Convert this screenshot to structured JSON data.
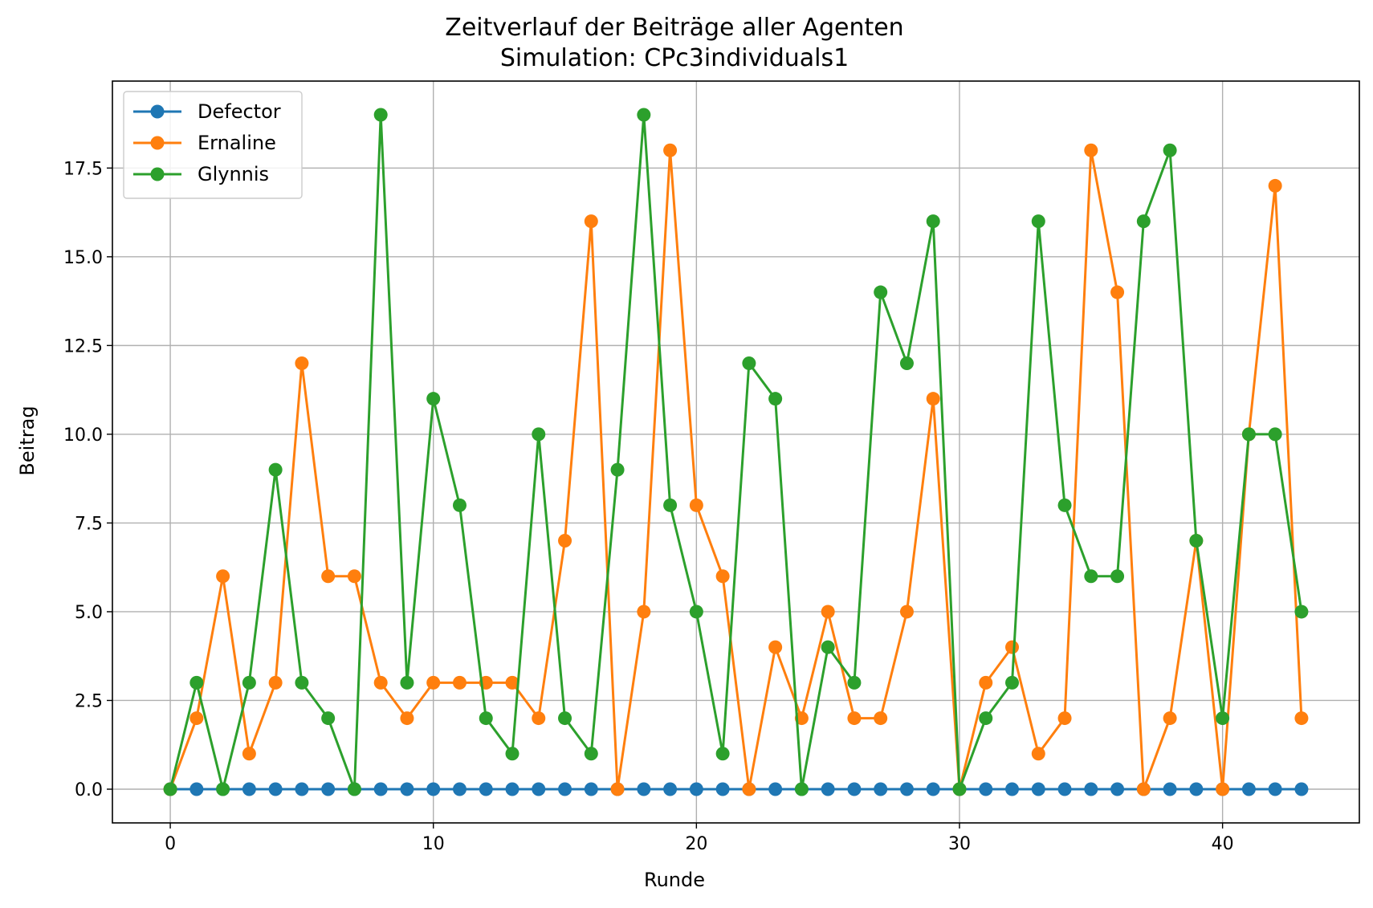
{
  "chart_data": {
    "type": "line",
    "title": "Zeitverlauf der Beiträge aller Agenten",
    "subtitle": "Simulation: CPc3individuals1",
    "xlabel": "Runde",
    "ylabel": "Beitrag",
    "xlim": [
      -2.2,
      45.2
    ],
    "ylim": [
      -0.95,
      19.95
    ],
    "xticks": [
      0,
      10,
      20,
      30,
      40
    ],
    "xtick_labels": [
      "0",
      "10",
      "20",
      "30",
      "40"
    ],
    "yticks": [
      0,
      2.5,
      5,
      7.5,
      10,
      12.5,
      15,
      17.5
    ],
    "ytick_labels": [
      "0.0",
      "2.5",
      "5.0",
      "7.5",
      "10.0",
      "12.5",
      "15.0",
      "17.5"
    ],
    "grid": true,
    "legend_position": "top-left",
    "x": [
      0,
      1,
      2,
      3,
      4,
      5,
      6,
      7,
      8,
      9,
      10,
      11,
      12,
      13,
      14,
      15,
      16,
      17,
      18,
      19,
      20,
      21,
      22,
      23,
      24,
      25,
      26,
      27,
      28,
      29,
      30,
      31,
      32,
      33,
      34,
      35,
      36,
      37,
      38,
      39,
      40,
      41,
      42,
      43
    ],
    "series": [
      {
        "name": "Defector",
        "color": "#1f77b4",
        "values": [
          0,
          0,
          0,
          0,
          0,
          0,
          0,
          0,
          0,
          0,
          0,
          0,
          0,
          0,
          0,
          0,
          0,
          0,
          0,
          0,
          0,
          0,
          0,
          0,
          0,
          0,
          0,
          0,
          0,
          0,
          0,
          0,
          0,
          0,
          0,
          0,
          0,
          0,
          0,
          0,
          0,
          0,
          0,
          0
        ]
      },
      {
        "name": "Ernaline",
        "color": "#ff7f0e",
        "values": [
          0,
          2,
          6,
          1,
          3,
          12,
          6,
          6,
          3,
          2,
          3,
          3,
          3,
          3,
          2,
          7,
          16,
          0,
          5,
          18,
          8,
          6,
          0,
          4,
          2,
          5,
          2,
          2,
          5,
          11,
          0,
          3,
          4,
          1,
          2,
          18,
          14,
          0,
          2,
          7,
          0,
          10,
          17,
          2
        ]
      },
      {
        "name": "Glynnis",
        "color": "#2ca02c",
        "values": [
          0,
          3,
          0,
          3,
          9,
          3,
          2,
          0,
          19,
          3,
          11,
          8,
          2,
          1,
          10,
          2,
          1,
          9,
          19,
          8,
          5,
          1,
          12,
          11,
          0,
          4,
          3,
          14,
          12,
          16,
          0,
          2,
          3,
          16,
          8,
          6,
          6,
          16,
          18,
          7,
          2,
          10,
          10,
          5
        ]
      }
    ]
  }
}
